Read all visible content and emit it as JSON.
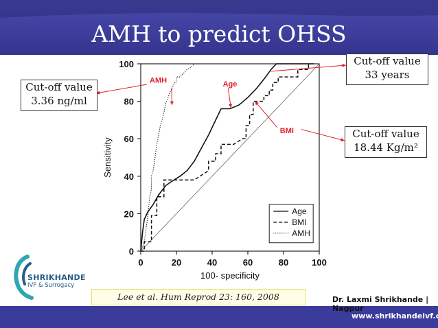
{
  "slide": {
    "title": "AMH to predict OHSS",
    "citation": "Lee et al. Hum Reprod 23: 160, 2008",
    "author": "Dr. Laxmi Shrikhande | Nagpur",
    "website": "www.shrikhandeivf.com",
    "logo_name": "SHRIKHANDE",
    "logo_sub": "IVF & Surrogacy",
    "colors": {
      "header_blue": "#3b3b9b",
      "callout_arrow": "#e0202e",
      "teal": "#2ea7b0"
    }
  },
  "callouts": {
    "amh": {
      "line1": "Cut-off value",
      "line2": "3.36 ng/ml"
    },
    "age": {
      "line1": "Cut-off value",
      "line2": "33 years"
    },
    "bmi": {
      "line1": "Cut-off value",
      "line2": "18.44 Kg/m²"
    }
  },
  "chart_data": {
    "type": "line",
    "title": "",
    "xlabel": "100- specificity",
    "ylabel": "Sensitivity",
    "xlim": [
      0,
      100
    ],
    "ylim": [
      0,
      100
    ],
    "xticks": [
      0,
      20,
      40,
      60,
      80,
      100
    ],
    "yticks": [
      0,
      20,
      40,
      60,
      80,
      100
    ],
    "legend": {
      "position": "bottom-right",
      "entries": [
        "Age",
        "BMI",
        "AMH"
      ]
    },
    "annotations": [
      "AMH",
      "Age",
      "BMI"
    ],
    "series": [
      {
        "name": "Age",
        "style": "solid",
        "x": [
          0,
          1,
          2,
          4,
          7,
          10,
          14,
          17,
          22,
          26,
          30,
          34,
          38,
          42,
          45,
          50,
          55,
          60,
          65,
          70,
          73,
          76,
          78,
          85,
          90,
          95,
          97
        ],
        "y": [
          0,
          10,
          17,
          21,
          25,
          30,
          35,
          37,
          40,
          43,
          48,
          55,
          62,
          70,
          76,
          76,
          78,
          82,
          87,
          93,
          97,
          100,
          100,
          100,
          100,
          100,
          100
        ]
      },
      {
        "name": "BMI",
        "style": "dashed",
        "x": [
          0,
          2,
          2,
          6,
          6,
          9,
          9,
          13,
          13,
          30,
          38,
          38,
          42,
          42,
          45,
          45,
          52,
          57,
          59,
          59,
          61,
          61,
          63,
          63,
          66,
          69,
          69,
          72,
          72,
          74,
          74,
          77,
          77,
          88,
          88,
          94,
          94,
          95
        ],
        "y": [
          0,
          0,
          5,
          5,
          19,
          19,
          29,
          29,
          38,
          38,
          43,
          48,
          48,
          52,
          52,
          57,
          57,
          60,
          60,
          67,
          67,
          73,
          73,
          80,
          80,
          80,
          83,
          83,
          86,
          86,
          90,
          90,
          93,
          93,
          97,
          97,
          100,
          100
        ]
      },
      {
        "name": "AMH",
        "style": "dotted",
        "x": [
          0,
          2,
          3,
          4,
          5,
          6,
          6,
          7,
          8,
          9,
          10,
          11,
          12,
          13,
          14,
          15,
          16,
          17,
          18,
          19,
          20,
          20,
          22,
          24,
          26,
          28,
          30,
          33
        ],
        "y": [
          0,
          5,
          12,
          19,
          29,
          33,
          40,
          43,
          50,
          57,
          62,
          67,
          70,
          74,
          79,
          81,
          84,
          86,
          88,
          90,
          90,
          93,
          93,
          95,
          97,
          98,
          100,
          100
        ]
      }
    ]
  }
}
